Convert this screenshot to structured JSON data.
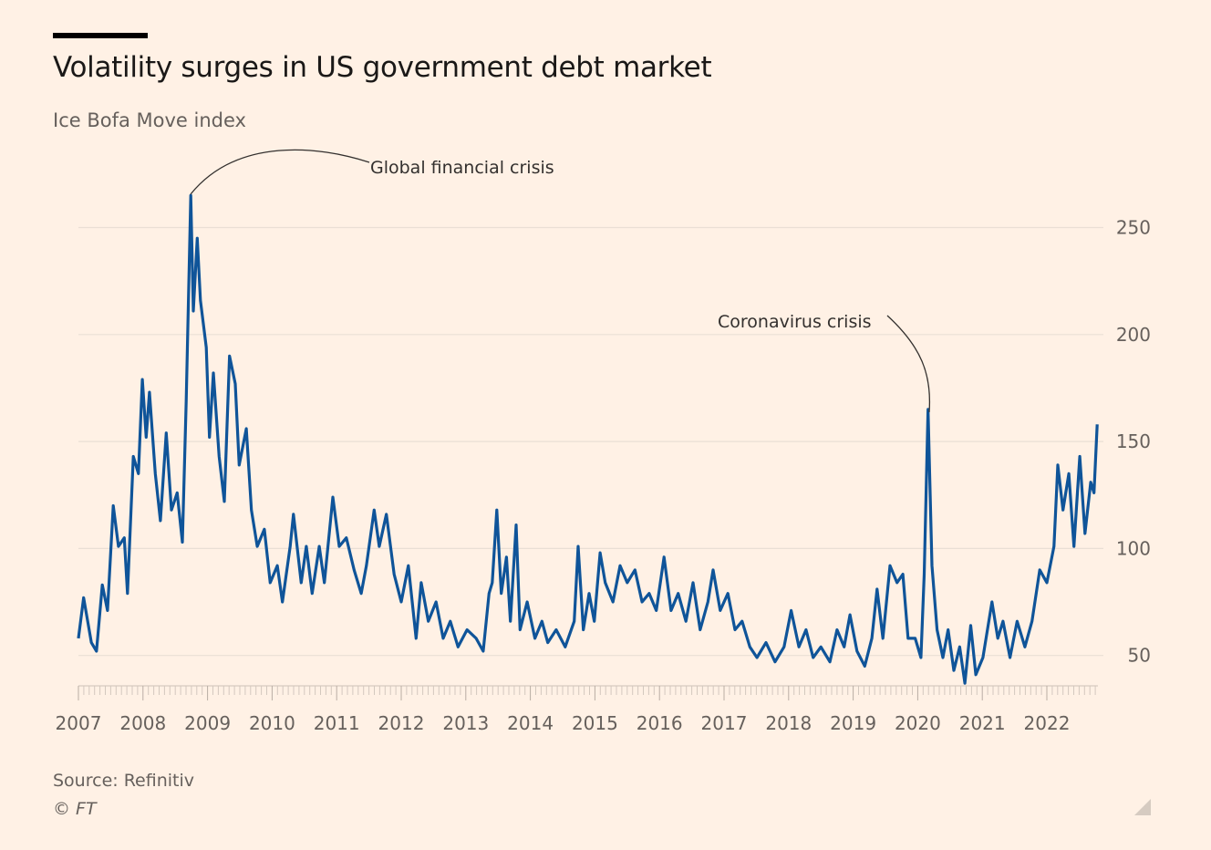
{
  "header": {
    "title": "Volatility surges in US government debt market",
    "subtitle": "Ice Bofa Move index"
  },
  "footer": {
    "source": "Source: Refinitiv",
    "copyright": "© FT"
  },
  "colors": {
    "background": "#fff1e5",
    "line": "#0f5499",
    "grid": "#eadfd5"
  },
  "chart_data": {
    "type": "line",
    "title": "Volatility surges in US government debt market",
    "subtitle": "Ice Bofa Move index",
    "xlabel": "",
    "ylabel": "",
    "xlim": [
      2007,
      2022.8
    ],
    "ylim": [
      36,
      265
    ],
    "yticks": [
      50,
      100,
      150,
      200,
      250
    ],
    "xticks": [
      "2007",
      "2008",
      "2009",
      "2010",
      "2011",
      "2012",
      "2013",
      "2014",
      "2015",
      "2016",
      "2017",
      "2018",
      "2019",
      "2020",
      "2021",
      "2022"
    ],
    "grid": true,
    "annotations": [
      {
        "text": "Global financial crisis",
        "x": 2008.74,
        "y": 265
      },
      {
        "text": "Coronavirus crisis",
        "x": 2020.16,
        "y": 165
      }
    ],
    "series": [
      {
        "name": "Ice Bofa Move index",
        "x": [
          2007.0,
          2007.08,
          2007.2,
          2007.28,
          2007.37,
          2007.45,
          2007.54,
          2007.62,
          2007.71,
          2007.76,
          2007.85,
          2007.93,
          2007.99,
          2008.05,
          2008.1,
          2008.19,
          2008.27,
          2008.36,
          2008.44,
          2008.53,
          2008.61,
          2008.67,
          2008.74,
          2008.78,
          2008.84,
          2008.89,
          2008.98,
          2009.03,
          2009.09,
          2009.18,
          2009.26,
          2009.34,
          2009.43,
          2009.49,
          2009.6,
          2009.68,
          2009.77,
          2009.88,
          2009.97,
          2010.08,
          2010.16,
          2010.28,
          2010.33,
          2010.45,
          2010.53,
          2010.62,
          2010.73,
          2010.81,
          2010.94,
          2011.04,
          2011.15,
          2011.27,
          2011.38,
          2011.46,
          2011.58,
          2011.66,
          2011.77,
          2011.89,
          2012.0,
          2012.11,
          2012.23,
          2012.31,
          2012.42,
          2012.54,
          2012.65,
          2012.76,
          2012.88,
          2013.02,
          2013.16,
          2013.27,
          2013.36,
          2013.41,
          2013.48,
          2013.55,
          2013.63,
          2013.69,
          2013.78,
          2013.84,
          2013.95,
          2014.07,
          2014.18,
          2014.27,
          2014.4,
          2014.54,
          2014.68,
          2014.74,
          2014.82,
          2014.91,
          2014.99,
          2015.08,
          2015.16,
          2015.28,
          2015.39,
          2015.5,
          2015.62,
          2015.73,
          2015.84,
          2015.95,
          2016.07,
          2016.18,
          2016.29,
          2016.41,
          2016.52,
          2016.63,
          2016.75,
          2016.83,
          2016.94,
          2017.06,
          2017.17,
          2017.28,
          2017.4,
          2017.51,
          2017.65,
          2017.79,
          2017.93,
          2018.04,
          2018.16,
          2018.27,
          2018.38,
          2018.5,
          2018.64,
          2018.75,
          2018.86,
          2018.95,
          2019.06,
          2019.18,
          2019.29,
          2019.37,
          2019.46,
          2019.57,
          2019.68,
          2019.77,
          2019.85,
          2019.96,
          2020.05,
          2020.1,
          2020.16,
          2020.22,
          2020.3,
          2020.39,
          2020.47,
          2020.56,
          2020.65,
          2020.73,
          2020.82,
          2020.9,
          2021.01,
          2021.15,
          2021.24,
          2021.32,
          2021.43,
          2021.54,
          2021.66,
          2021.77,
          2021.89,
          2022.0,
          2022.11,
          2022.17,
          2022.25,
          2022.34,
          2022.42,
          2022.51,
          2022.59,
          2022.68,
          2022.73,
          2022.78
        ],
        "values": [
          58,
          77,
          56,
          52,
          83,
          71,
          120,
          101,
          105,
          79,
          143,
          135,
          179,
          152,
          173,
          135,
          113,
          154,
          118,
          126,
          103,
          169,
          265,
          211,
          245,
          216,
          194,
          152,
          182,
          143,
          122,
          190,
          177,
          139,
          156,
          118,
          101,
          109,
          84,
          92,
          75,
          101,
          116,
          84,
          101,
          79,
          101,
          84,
          124,
          101,
          105,
          90,
          79,
          92,
          118,
          101,
          116,
          88,
          75,
          92,
          58,
          84,
          66,
          75,
          58,
          66,
          54,
          62,
          58,
          52,
          79,
          84,
          118,
          79,
          96,
          66,
          111,
          62,
          75,
          58,
          66,
          56,
          62,
          54,
          66,
          101,
          62,
          79,
          66,
          98,
          84,
          75,
          92,
          84,
          90,
          75,
          79,
          71,
          96,
          71,
          79,
          66,
          84,
          62,
          75,
          90,
          71,
          79,
          62,
          66,
          54,
          49,
          56,
          47,
          54,
          71,
          54,
          62,
          49,
          54,
          47,
          62,
          54,
          69,
          52,
          45,
          58,
          81,
          58,
          92,
          84,
          88,
          58,
          58,
          49,
          88,
          165,
          92,
          62,
          49,
          62,
          43,
          54,
          37,
          64,
          41,
          49,
          75,
          58,
          66,
          49,
          66,
          54,
          66,
          90,
          84,
          101,
          139,
          118,
          135,
          101,
          143,
          107,
          131,
          126,
          158
        ]
      }
    ]
  }
}
